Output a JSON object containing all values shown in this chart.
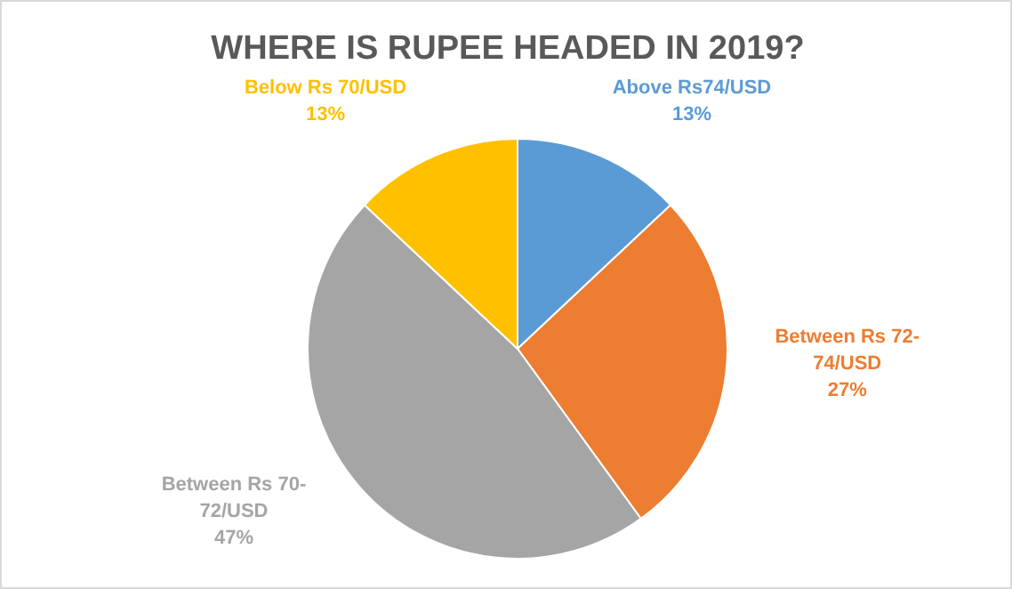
{
  "chart_data": {
    "type": "pie",
    "title": "WHERE IS RUPEE HEADED IN 2019?",
    "categories": [
      "Above Rs74/USD",
      "Between Rs 72-74/USD",
      "Between Rs 70-72/USD",
      "Below Rs 70/USD"
    ],
    "values": [
      13,
      27,
      47,
      13
    ],
    "value_labels": [
      "13%",
      "27%",
      "47%",
      "13%"
    ],
    "colors": [
      "#5b9bd5",
      "#ed7d31",
      "#a5a5a5",
      "#ffc000"
    ]
  }
}
